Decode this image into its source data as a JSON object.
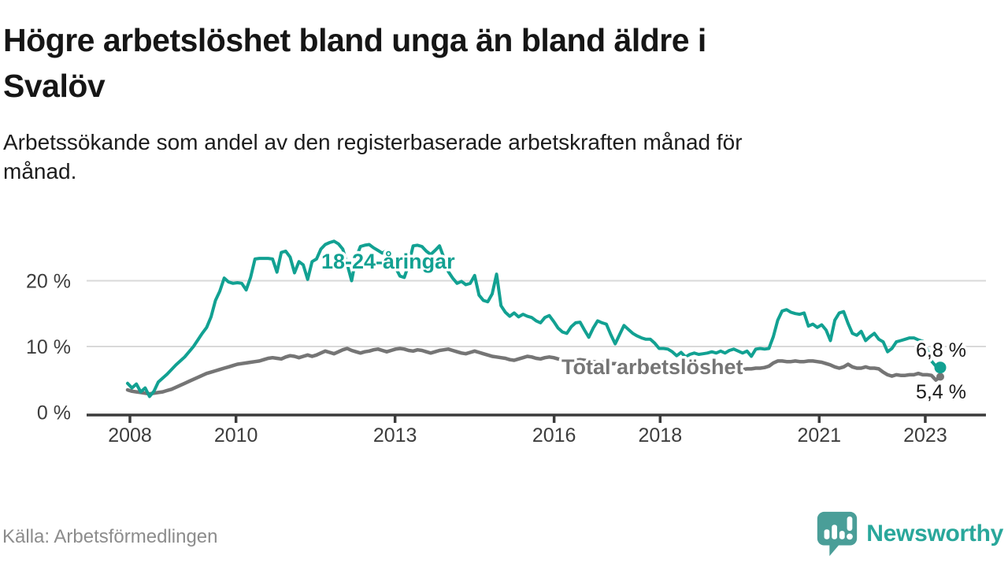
{
  "title": "Högre arbetslöshet bland unga än bland äldre i\nSvalöv",
  "subtitle": "Arbetssökande som andel av den registerbaserade arbetskraften månad för\nmånad.",
  "source": "Källa: Arbetsförmedlingen",
  "brand": {
    "name": "Newsworthy",
    "logo_icon": "speech-bubble-bar-chart-icon",
    "bubble_color": "#4a9e98",
    "wordmark_color": "#29a79b"
  },
  "colors": {
    "youth_line": "#12a192",
    "total_line": "#757575",
    "axis": "#3b3b3b",
    "gridline": "#d9d9d9",
    "title_text": "#161616",
    "value_label_text": "#1a1a1a",
    "source_text": "#8c8c8c",
    "background": "#ffffff"
  },
  "chart_data": {
    "type": "line",
    "title": "Högre arbetslöshet bland unga än bland äldre i Svalöv",
    "subtitle": "Arbetssökande som andel av den registerbaserade arbetskraften månad för månad.",
    "x_unit": "month",
    "x_range": [
      "2008-01",
      "2023-06"
    ],
    "x_tick_labels": [
      "2008",
      "2010",
      "2013",
      "2016",
      "2018",
      "2021",
      "2023"
    ],
    "y_tick_values": [
      0,
      10,
      20
    ],
    "y_tick_labels": [
      "0 %",
      "10 %",
      "20 %"
    ],
    "ylim": [
      0,
      27.5
    ],
    "grid": "horizontal",
    "legend": "inline-labels",
    "series": [
      {
        "name": "18-24-åringar",
        "color": "#12a192",
        "end_label": "6,8 %",
        "end_dot": true,
        "values": [
          4.4,
          3.7,
          4.3,
          3.1,
          3.7,
          2.4,
          3.2,
          4.6,
          5.2,
          5.8,
          6.5,
          7.2,
          7.8,
          8.4,
          9.2,
          10.0,
          11.0,
          12.0,
          12.9,
          14.5,
          17.0,
          18.4,
          20.4,
          19.8,
          19.6,
          19.7,
          19.6,
          18.6,
          20.5,
          23.3,
          23.4,
          23.4,
          23.4,
          23.3,
          21.3,
          24.3,
          24.5,
          23.6,
          21.2,
          22.9,
          22.4,
          20.2,
          22.9,
          23.3,
          24.8,
          25.5,
          25.8,
          26.0,
          25.6,
          24.8,
          22.5,
          20.0,
          23.5,
          25.2,
          25.4,
          25.5,
          25.0,
          24.6,
          24.2,
          24.6,
          23.5,
          22.0,
          20.7,
          20.5,
          22.5,
          25.3,
          25.4,
          25.2,
          24.5,
          24.0,
          24.6,
          25.3,
          23.5,
          21.4,
          20.4,
          19.6,
          19.9,
          19.4,
          19.6,
          20.8,
          17.8,
          17.0,
          16.8,
          18.0,
          21.0,
          16.2,
          15.2,
          14.6,
          15.1,
          14.5,
          14.9,
          14.6,
          14.4,
          13.9,
          13.6,
          14.4,
          14.7,
          13.8,
          12.8,
          12.2,
          12.0,
          13.0,
          13.6,
          13.7,
          12.5,
          11.4,
          12.8,
          13.9,
          13.6,
          13.4,
          11.8,
          10.4,
          11.8,
          13.2,
          12.6,
          12.0,
          11.6,
          11.3,
          11.1,
          11.1,
          10.5,
          9.7,
          9.7,
          9.6,
          9.2,
          8.6,
          9.1,
          8.4,
          8.8,
          9.0,
          8.8,
          8.9,
          9.0,
          9.2,
          9.0,
          9.3,
          9.0,
          9.4,
          9.6,
          9.3,
          9.0,
          9.3,
          8.5,
          9.6,
          9.7,
          9.6,
          9.7,
          11.5,
          14.0,
          15.4,
          15.6,
          15.2,
          15.0,
          14.9,
          15.1,
          13.1,
          13.4,
          12.9,
          13.3,
          12.5,
          10.9,
          14.0,
          15.1,
          15.3,
          13.5,
          12.0,
          11.7,
          12.3,
          10.9,
          11.5,
          12.0,
          11.1,
          10.7,
          9.2,
          9.7,
          10.7,
          10.9,
          11.1,
          11.3,
          11.3,
          11.0,
          10.8,
          9.5,
          7.8,
          7.0,
          6.8
        ]
      },
      {
        "name": "Total arbetslöshet",
        "color": "#757575",
        "end_label": "5,4 %",
        "end_dot": true,
        "values": [
          3.4,
          3.2,
          3.1,
          3.0,
          2.9,
          2.8,
          2.9,
          3.0,
          3.1,
          3.3,
          3.5,
          3.8,
          4.1,
          4.4,
          4.7,
          5.0,
          5.3,
          5.6,
          5.9,
          6.1,
          6.3,
          6.5,
          6.7,
          6.9,
          7.1,
          7.3,
          7.4,
          7.5,
          7.6,
          7.7,
          7.8,
          8.0,
          8.2,
          8.3,
          8.2,
          8.1,
          8.4,
          8.6,
          8.5,
          8.3,
          8.5,
          8.7,
          8.5,
          8.7,
          9.0,
          9.3,
          9.1,
          8.9,
          9.2,
          9.5,
          9.7,
          9.4,
          9.2,
          9.0,
          9.2,
          9.3,
          9.5,
          9.6,
          9.4,
          9.2,
          9.4,
          9.6,
          9.7,
          9.6,
          9.4,
          9.3,
          9.5,
          9.4,
          9.2,
          9.0,
          9.2,
          9.4,
          9.5,
          9.6,
          9.4,
          9.2,
          9.0,
          8.9,
          9.1,
          9.3,
          9.1,
          8.9,
          8.7,
          8.5,
          8.4,
          8.3,
          8.2,
          8.0,
          7.9,
          8.1,
          8.3,
          8.5,
          8.4,
          8.2,
          8.1,
          8.3,
          8.4,
          8.3,
          8.1,
          8.0,
          7.9,
          7.8,
          7.9,
          8.0,
          7.9,
          7.8,
          7.7,
          7.6,
          7.6,
          7.5,
          7.4,
          7.4,
          7.3,
          7.3,
          7.4,
          7.4,
          7.3,
          7.2,
          7.1,
          7.1,
          7.0,
          7.0,
          6.9,
          6.8,
          6.8,
          6.7,
          6.8,
          6.8,
          6.7,
          6.6,
          6.6,
          6.5,
          6.5,
          6.5,
          6.4,
          6.4,
          6.5,
          6.5,
          6.6,
          6.6,
          6.5,
          6.6,
          6.6,
          6.7,
          6.7,
          6.8,
          7.0,
          7.5,
          7.8,
          7.8,
          7.7,
          7.7,
          7.8,
          7.7,
          7.7,
          7.8,
          7.8,
          7.7,
          7.6,
          7.4,
          7.2,
          6.9,
          6.7,
          6.9,
          7.3,
          6.9,
          6.7,
          6.7,
          6.9,
          6.7,
          6.7,
          6.6,
          6.1,
          5.7,
          5.5,
          5.7,
          5.6,
          5.6,
          5.7,
          5.7,
          5.9,
          5.7,
          5.7,
          5.6,
          4.9,
          5.4
        ]
      }
    ]
  }
}
